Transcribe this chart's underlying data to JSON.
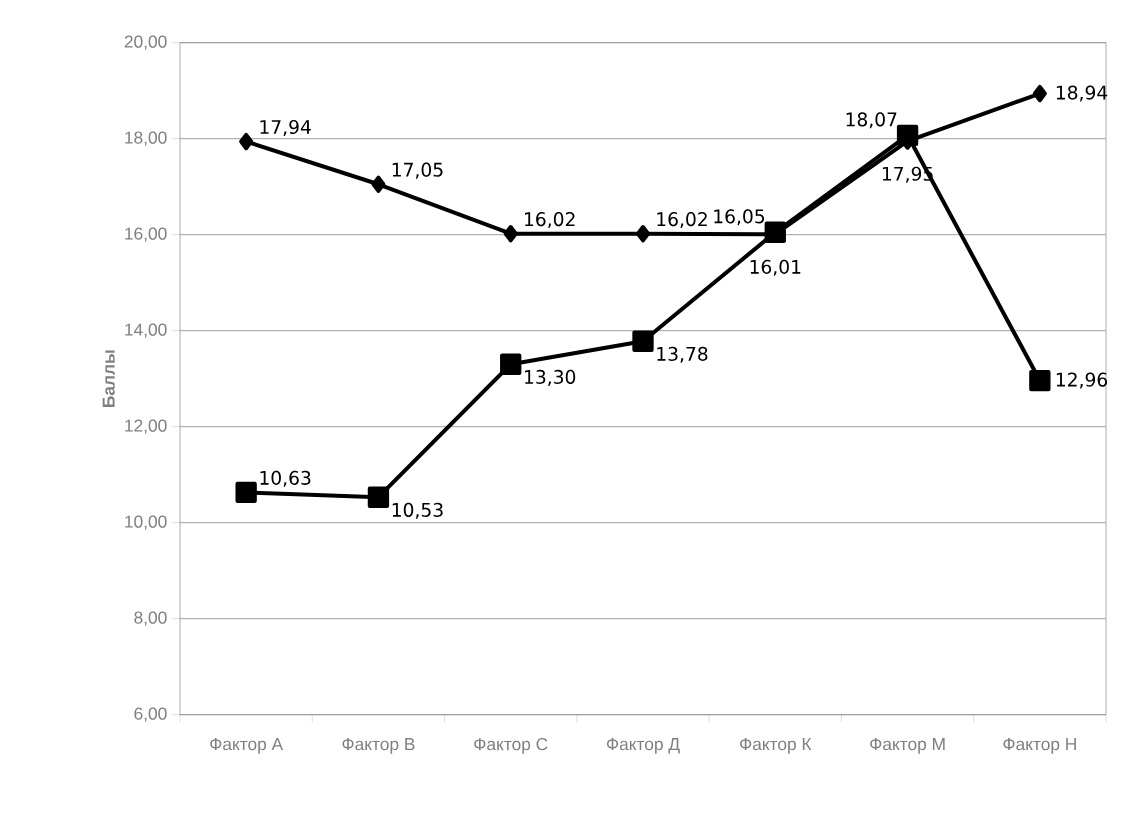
{
  "chart_data": {
    "type": "line",
    "ylabel": "Баллы",
    "categories": [
      "Фактор А",
      "Фактор В",
      "Фактор С",
      "Фактор Д",
      "Фактор  К",
      "Фактор М",
      "Фактор Н"
    ],
    "series": [
      {
        "color": "#000000",
        "marker": "diamond",
        "values": [
          17.94,
          17.05,
          16.02,
          16.02,
          16.01,
          17.95,
          18.94
        ],
        "value_labels": [
          "17,94",
          "17,05",
          "16,02",
          "16,02",
          "16,01",
          "17,95",
          "18,94"
        ]
      },
      {
        "color": "#000000",
        "marker": "square",
        "values": [
          10.63,
          10.53,
          13.3,
          13.78,
          16.05,
          18.07,
          12.96
        ],
        "value_labels": [
          "10,63",
          "10,53",
          "13,30",
          "13,78",
          "16,05",
          "18,07",
          "12,96"
        ]
      }
    ],
    "ylim": [
      6,
      20
    ],
    "yticks": [
      {
        "value": 6,
        "label": "6,00"
      },
      {
        "value": 8,
        "label": "8,00"
      },
      {
        "value": 10,
        "label": "10,00"
      },
      {
        "value": 12,
        "label": "12,00"
      },
      {
        "value": 14,
        "label": "14,00"
      },
      {
        "value": 16,
        "label": "16,00"
      },
      {
        "value": 18,
        "label": "18,00"
      },
      {
        "value": 20,
        "label": "20,00"
      }
    ],
    "grid": "y"
  }
}
